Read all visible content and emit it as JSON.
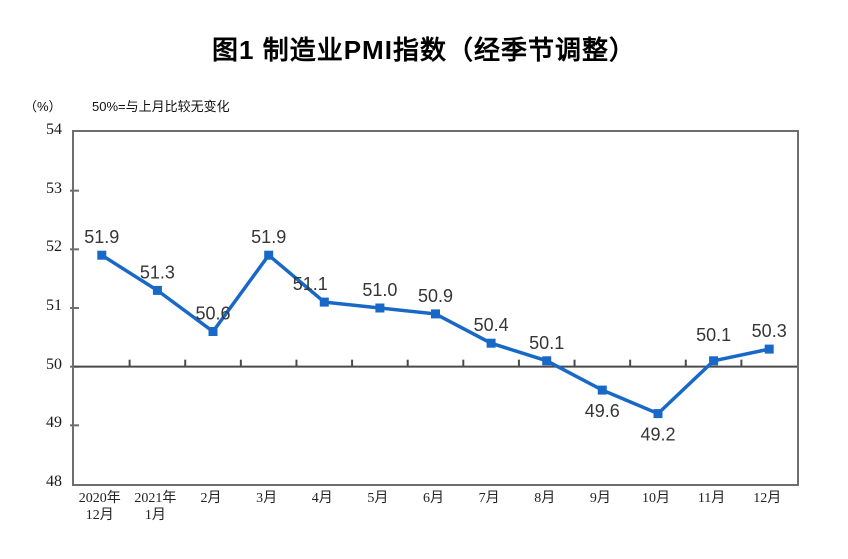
{
  "chart_data": {
    "type": "line",
    "title": "图1 制造业PMI指数（经季节调整）",
    "unit_label": "（%）",
    "annotation": "50%=与上月比较无变化",
    "categories": [
      "2020年\n12月",
      "2021年\n1月",
      "2月",
      "3月",
      "4月",
      "5月",
      "6月",
      "7月",
      "8月",
      "9月",
      "10月",
      "11月",
      "12月"
    ],
    "values": [
      51.9,
      51.3,
      50.6,
      51.9,
      51.1,
      51.0,
      50.9,
      50.4,
      50.1,
      49.6,
      49.2,
      50.1,
      50.3
    ],
    "data_labels": [
      "51.9",
      "51.3",
      "50.6",
      "51.9",
      "51.1",
      "51.0",
      "50.9",
      "50.4",
      "50.1",
      "49.6",
      "49.2",
      "50.1",
      "50.3"
    ],
    "label_positions": [
      "above",
      "above",
      "above",
      "above",
      "above",
      "above",
      "above",
      "above",
      "above",
      "below",
      "below",
      "above",
      "above"
    ],
    "yticks": [
      54,
      53,
      52,
      51,
      50,
      49,
      48
    ],
    "ylim": [
      48,
      54
    ],
    "reference_line": 50,
    "grid": false,
    "legend": "none",
    "marker": "square",
    "line_color": "#1868C8",
    "label_color": "#363636",
    "axis_color": "#6e6e6e",
    "reference_line_color": "#4a4a4a",
    "xlabel": "",
    "ylabel": "（%）"
  }
}
